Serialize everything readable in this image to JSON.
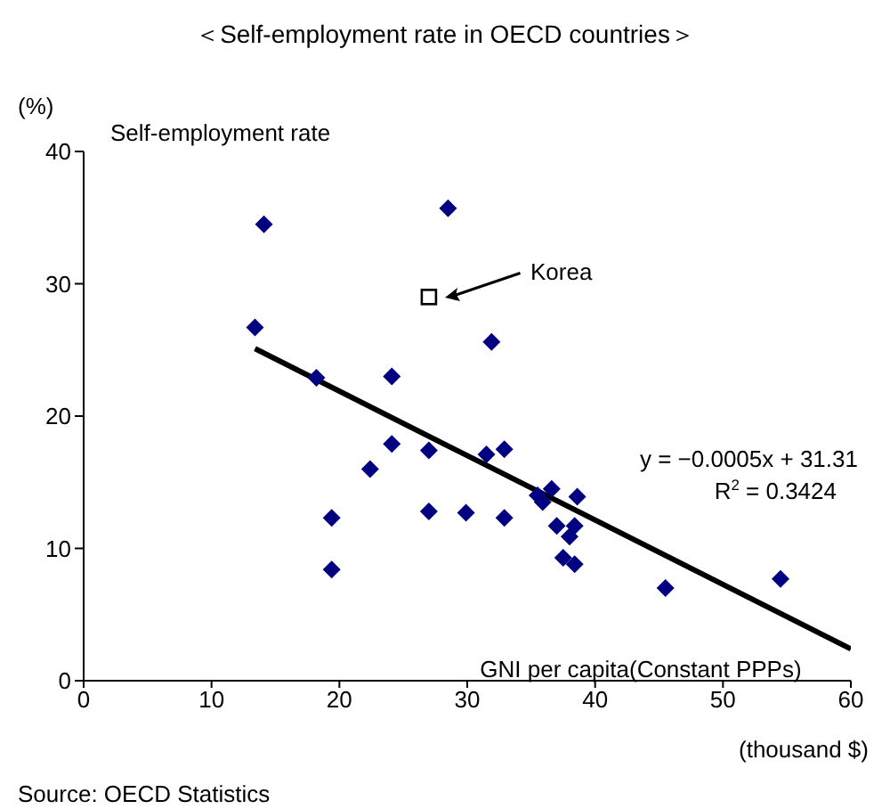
{
  "chart_data": {
    "type": "scatter",
    "title": "＜Self-employment rate in OECD countries＞",
    "xlabel": "GNI per capita(Constant PPPs)",
    "ylabel": "Self-employment rate",
    "series": [
      {
        "color": "#000080",
        "marker": "diamond",
        "x": [
          14.1,
          13.4,
          18.2,
          24.1,
          28.5,
          19.4,
          19.4,
          22.4,
          24.1,
          27.0,
          27.0,
          29.9,
          31.9,
          31.5,
          32.9,
          32.9,
          35.5,
          35.9,
          36.6,
          38.6,
          37.0,
          38.4,
          38.0,
          37.5,
          38.4,
          45.5,
          54.5
        ],
        "values": [
          34.5,
          26.7,
          22.9,
          23.0,
          35.7,
          12.3,
          8.4,
          16.0,
          17.9,
          17.4,
          12.8,
          12.7,
          25.6,
          17.1,
          17.5,
          12.3,
          14.0,
          13.5,
          14.5,
          13.9,
          11.7,
          11.7,
          10.9,
          9.3,
          8.8,
          7.0,
          7.7
        ]
      },
      {
        "color": "#000000",
        "marker": "square",
        "x": [
          27.0
        ],
        "values": [
          29.0
        ]
      },
      {
        "type": "line",
        "color": "#000000",
        "x": [
          13.4,
          60
        ],
        "values": [
          25.1,
          2.4
        ]
      }
    ],
    "xlim": [
      0,
      60
    ],
    "xticks": [
      0,
      10,
      20,
      30,
      40,
      50,
      60
    ],
    "ylim": [
      0,
      40
    ],
    "yticks": [
      0,
      10,
      20,
      30,
      40
    ],
    "grid": false,
    "legend": false,
    "annotations": [
      "Korea",
      "(%)",
      "(thousand $)",
      "y = −0.0005x + 31.31",
      "R$^{2}$ = 0.3424",
      "Source: OECD Statistics"
    ]
  }
}
